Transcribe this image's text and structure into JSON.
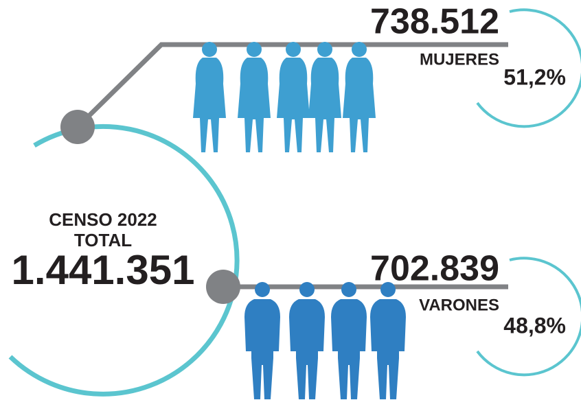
{
  "total": {
    "label": "CENSO 2022",
    "sublabel": "TOTAL",
    "value": "1.441.351"
  },
  "women": {
    "value": "738.512",
    "label": "MUJERES",
    "percent": "51,2%"
  },
  "men": {
    "value": "702.839",
    "label": "VARONES",
    "percent": "48,8%"
  }
}
